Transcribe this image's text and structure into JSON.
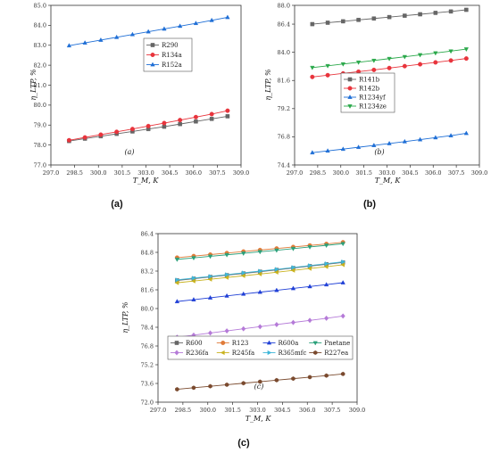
{
  "figure_labels": [
    "(a)",
    "(b)",
    "(c)"
  ],
  "chart_data": [
    {
      "type": "line",
      "panel": "(a)",
      "sublabel": "(a)",
      "xlabel": "T_M, K",
      "ylabel": "η_LTP, %",
      "xlim": [
        297.0,
        309.0
      ],
      "ylim": [
        77.0,
        85.0
      ],
      "xticks": [
        "297.0",
        "298.5",
        "300.0",
        "301.5",
        "303.0",
        "304.5",
        "306.0",
        "307.5",
        "309.0"
      ],
      "yticks": [
        "77.0",
        "78.0",
        "79.0",
        "80.0",
        "81.0",
        "82.0",
        "83.0",
        "84.0",
        "85.0"
      ],
      "x": [
        298.15,
        299.15,
        300.15,
        301.15,
        302.15,
        303.15,
        304.15,
        305.15,
        306.15,
        307.15,
        308.15
      ],
      "legend_position": "center-right",
      "series": [
        {
          "name": "R290",
          "color": "#666666",
          "marker": "square",
          "values": [
            78.2,
            78.32,
            78.44,
            78.56,
            78.68,
            78.8,
            78.92,
            79.05,
            79.18,
            79.31,
            79.44
          ]
        },
        {
          "name": "R134a",
          "color": "#e8343c",
          "marker": "circle",
          "values": [
            78.24,
            78.38,
            78.52,
            78.66,
            78.8,
            78.95,
            79.1,
            79.25,
            79.4,
            79.55,
            79.72
          ]
        },
        {
          "name": "R152a",
          "color": "#1f6fd6",
          "marker": "triangle",
          "values": [
            82.98,
            83.12,
            83.26,
            83.4,
            83.54,
            83.68,
            83.82,
            83.96,
            84.1,
            84.25,
            84.4
          ]
        }
      ]
    },
    {
      "type": "line",
      "panel": "(b)",
      "sublabel": "(b)",
      "xlabel": "T_M, K",
      "ylabel": "η_LTP, %",
      "xlim": [
        297.0,
        309.0
      ],
      "ylim": [
        74.4,
        88.0
      ],
      "xticks": [
        "297.0",
        "298.5",
        "300.0",
        "301.5",
        "303.0",
        "304.5",
        "306.0",
        "307.5",
        "309.0"
      ],
      "yticks": [
        "74.4",
        "76.8",
        "79.2",
        "81.6",
        "84.0",
        "86.4",
        "88.0"
      ],
      "x": [
        298.15,
        299.15,
        300.15,
        301.15,
        302.15,
        303.15,
        304.15,
        305.15,
        306.15,
        307.15,
        308.15
      ],
      "legend_position": "center-left",
      "series": [
        {
          "name": "R141b",
          "color": "#666666",
          "marker": "square",
          "values": [
            86.4,
            86.52,
            86.64,
            86.76,
            86.88,
            87.0,
            87.12,
            87.24,
            87.36,
            87.48,
            87.62
          ]
        },
        {
          "name": "R142b",
          "color": "#e8343c",
          "marker": "circle",
          "values": [
            81.9,
            82.05,
            82.2,
            82.35,
            82.5,
            82.66,
            82.82,
            82.98,
            83.14,
            83.3,
            83.47
          ]
        },
        {
          "name": "R1234yf",
          "color": "#1f6fd6",
          "marker": "triangle",
          "values": [
            75.45,
            75.6,
            75.75,
            75.91,
            76.07,
            76.23,
            76.39,
            76.56,
            76.73,
            76.9,
            77.1
          ]
        },
        {
          "name": "R1234ze",
          "color": "#2aa84a",
          "marker": "triangle-down",
          "values": [
            82.7,
            82.85,
            83.0,
            83.15,
            83.3,
            83.46,
            83.62,
            83.78,
            83.94,
            84.1,
            84.27
          ]
        }
      ]
    },
    {
      "type": "line",
      "panel": "(c)",
      "sublabel": "(c)",
      "xlabel": "T_M, K",
      "ylabel": "η_LTP, %",
      "xlim": [
        297.0,
        309.0
      ],
      "ylim": [
        72.0,
        86.4
      ],
      "xticks": [
        "297.0",
        "298.5",
        "300.0",
        "301.5",
        "303.0",
        "304.5",
        "306.0",
        "307.5",
        "309.0"
      ],
      "yticks": [
        "72.0",
        "73.6",
        "75.2",
        "76.8",
        "78.4",
        "80.0",
        "81.6",
        "83.2",
        "84.8",
        "86.4"
      ],
      "x": [
        298.15,
        299.15,
        300.15,
        301.15,
        302.15,
        303.15,
        304.15,
        305.15,
        306.15,
        307.15,
        308.15
      ],
      "legend_position": "bottom",
      "series": [
        {
          "name": "R600",
          "color": "#666666",
          "marker": "square",
          "values": [
            82.4,
            82.55,
            82.7,
            82.85,
            83.0,
            83.15,
            83.3,
            83.46,
            83.62,
            83.78,
            83.94
          ]
        },
        {
          "name": "R123",
          "color": "#e07b39",
          "marker": "circle",
          "values": [
            84.35,
            84.48,
            84.61,
            84.74,
            84.87,
            85.0,
            85.13,
            85.26,
            85.39,
            85.52,
            85.66
          ]
        },
        {
          "name": "R600a",
          "color": "#1f3fd6",
          "marker": "triangle",
          "values": [
            80.6,
            80.76,
            80.92,
            81.08,
            81.24,
            81.4,
            81.56,
            81.72,
            81.88,
            82.04,
            82.21
          ]
        },
        {
          "name": "Pnetane",
          "color": "#2aa07a",
          "marker": "triangle-down",
          "values": [
            84.2,
            84.33,
            84.46,
            84.59,
            84.72,
            84.85,
            84.98,
            85.12,
            85.26,
            85.4,
            85.54
          ]
        },
        {
          "name": "R236fa",
          "color": "#b57ad8",
          "marker": "diamond",
          "values": [
            77.55,
            77.73,
            77.91,
            78.09,
            78.27,
            78.45,
            78.63,
            78.81,
            78.99,
            79.17,
            79.36
          ]
        },
        {
          "name": "R245fa",
          "color": "#c9b21e",
          "marker": "triangle-left",
          "values": [
            82.2,
            82.35,
            82.5,
            82.65,
            82.8,
            82.95,
            83.1,
            83.26,
            83.42,
            83.58,
            83.74
          ]
        },
        {
          "name": "R365mfc",
          "color": "#3fb7d9",
          "marker": "triangle-right",
          "values": [
            82.45,
            82.6,
            82.75,
            82.9,
            83.05,
            83.2,
            83.35,
            83.51,
            83.67,
            83.83,
            83.99
          ]
        },
        {
          "name": "R227ea",
          "color": "#7a4a2e",
          "marker": "hexagon",
          "values": [
            73.1,
            73.23,
            73.36,
            73.49,
            73.62,
            73.75,
            73.88,
            74.01,
            74.14,
            74.27,
            74.41
          ]
        }
      ]
    }
  ]
}
